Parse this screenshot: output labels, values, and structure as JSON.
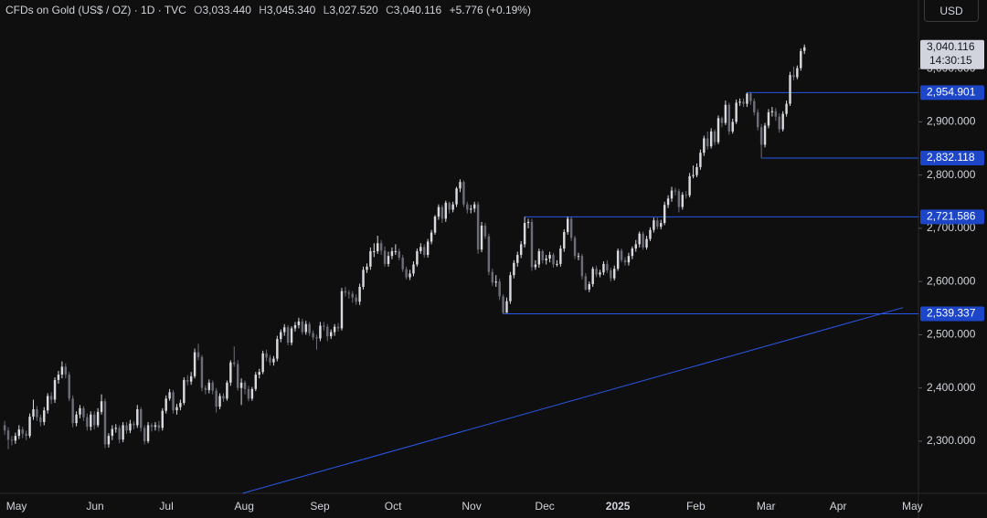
{
  "header": {
    "title": "CFDs on Gold (US$ / OZ) · 1D · TVC",
    "ohlc": [
      {
        "key": "O",
        "value": "3,033.440"
      },
      {
        "key": "H",
        "value": "3,045.340"
      },
      {
        "key": "L",
        "value": "3,027.520"
      },
      {
        "key": "C",
        "value": "3,040.116"
      }
    ],
    "change": "+5.776 (+0.19%)",
    "currency": "USD"
  },
  "last_label": {
    "price": "3,040.116",
    "countdown": "14:30:15"
  },
  "chart_data": {
    "type": "candlestick",
    "up_color": "#d9dadf",
    "down_color": "#6b6e78",
    "line_color": "#2958e8",
    "label_color": "#1c45c8",
    "xlim": [
      -1.3,
      254.8
    ],
    "ylim": [
      2202,
      3129
    ],
    "xticks": [
      {
        "value": 3.3,
        "label": "May"
      },
      {
        "value": 25.2,
        "label": "Jun"
      },
      {
        "value": 45.1,
        "label": "Jul"
      },
      {
        "value": 66.8,
        "label": "Aug"
      },
      {
        "value": 87.9,
        "label": "Sep"
      },
      {
        "value": 108.3,
        "label": "Oct"
      },
      {
        "value": 130.2,
        "label": "Nov"
      },
      {
        "value": 150.6,
        "label": "Dec"
      },
      {
        "value": 171.0,
        "label": "2025"
      },
      {
        "value": 192.7,
        "label": "Feb"
      },
      {
        "value": 212.3,
        "label": "Mar"
      },
      {
        "value": 232.4,
        "label": "Apr"
      },
      {
        "value": 253.1,
        "label": "May"
      }
    ],
    "yticks": [
      {
        "value": 2300,
        "label": "2,300.000"
      },
      {
        "value": 2400,
        "label": "2,400.000"
      },
      {
        "value": 2500,
        "label": "2,500.000"
      },
      {
        "value": 2600,
        "label": "2,600.000"
      },
      {
        "value": 2700,
        "label": "2,700.000"
      },
      {
        "value": 2800,
        "label": "2,800.000"
      },
      {
        "value": 2900,
        "label": "2,900.000"
      },
      {
        "value": 3000,
        "label": "3,000.000"
      }
    ],
    "levels": [
      {
        "value": 2954.901,
        "label": "2,954.901",
        "start": 207
      },
      {
        "value": 2832.118,
        "label": "2,832.118",
        "start": 211
      },
      {
        "value": 2721.586,
        "label": "2,721.586",
        "start": 145
      },
      {
        "value": 2539.337,
        "label": "2,539.337",
        "start": 139
      }
    ],
    "trendline": {
      "x": [
        66.3,
        250.5
      ],
      "y": [
        2202,
        2551
      ]
    },
    "candles": [
      [
        2330,
        2338,
        2312,
        2320
      ],
      [
        2320,
        2326,
        2285,
        2303
      ],
      [
        2303,
        2310,
        2292,
        2301
      ],
      [
        2301,
        2316,
        2295,
        2310
      ],
      [
        2310,
        2330,
        2304,
        2322
      ],
      [
        2322,
        2327,
        2306,
        2314
      ],
      [
        2314,
        2320,
        2302,
        2310
      ],
      [
        2310,
        2352,
        2306,
        2346
      ],
      [
        2346,
        2378,
        2340,
        2360
      ],
      [
        2360,
        2366,
        2338,
        2345
      ],
      [
        2345,
        2350,
        2328,
        2336
      ],
      [
        2336,
        2364,
        2330,
        2358
      ],
      [
        2358,
        2390,
        2352,
        2385
      ],
      [
        2385,
        2392,
        2370,
        2378
      ],
      [
        2378,
        2420,
        2372,
        2415
      ],
      [
        2415,
        2432,
        2408,
        2425
      ],
      [
        2425,
        2450,
        2418,
        2440
      ],
      [
        2440,
        2446,
        2418,
        2425
      ],
      [
        2425,
        2430,
        2375,
        2380
      ],
      [
        2380,
        2386,
        2326,
        2334
      ],
      [
        2334,
        2356,
        2328,
        2350
      ],
      [
        2350,
        2368,
        2343,
        2362
      ],
      [
        2362,
        2366,
        2338,
        2345
      ],
      [
        2345,
        2352,
        2320,
        2327
      ],
      [
        2327,
        2356,
        2320,
        2350
      ],
      [
        2350,
        2356,
        2322,
        2330
      ],
      [
        2330,
        2362,
        2326,
        2355
      ],
      [
        2355,
        2388,
        2350,
        2375
      ],
      [
        2375,
        2380,
        2287,
        2294
      ],
      [
        2294,
        2315,
        2288,
        2310
      ],
      [
        2310,
        2330,
        2302,
        2323
      ],
      [
        2323,
        2332,
        2316,
        2325
      ],
      [
        2325,
        2330,
        2296,
        2303
      ],
      [
        2303,
        2336,
        2298,
        2330
      ],
      [
        2330,
        2336,
        2314,
        2320
      ],
      [
        2320,
        2340,
        2315,
        2333
      ],
      [
        2333,
        2338,
        2322,
        2330
      ],
      [
        2330,
        2368,
        2325,
        2360
      ],
      [
        2360,
        2364,
        2318,
        2325
      ],
      [
        2325,
        2330,
        2294,
        2300
      ],
      [
        2300,
        2336,
        2296,
        2330
      ],
      [
        2330,
        2334,
        2318,
        2327
      ],
      [
        2327,
        2336,
        2320,
        2330
      ],
      [
        2330,
        2338,
        2318,
        2325
      ],
      [
        2325,
        2362,
        2320,
        2357
      ],
      [
        2357,
        2386,
        2352,
        2380
      ],
      [
        2380,
        2398,
        2376,
        2392
      ],
      [
        2392,
        2396,
        2352,
        2358
      ],
      [
        2358,
        2370,
        2350,
        2364
      ],
      [
        2364,
        2378,
        2358,
        2372
      ],
      [
        2372,
        2420,
        2368,
        2415
      ],
      [
        2415,
        2424,
        2405,
        2412
      ],
      [
        2412,
        2430,
        2406,
        2422
      ],
      [
        2422,
        2474,
        2418,
        2467
      ],
      [
        2467,
        2483,
        2452,
        2458
      ],
      [
        2458,
        2462,
        2394,
        2400
      ],
      [
        2400,
        2405,
        2388,
        2396
      ],
      [
        2396,
        2416,
        2390,
        2410
      ],
      [
        2410,
        2414,
        2388,
        2395
      ],
      [
        2395,
        2400,
        2354,
        2365
      ],
      [
        2365,
        2390,
        2360,
        2385
      ],
      [
        2385,
        2390,
        2374,
        2380
      ],
      [
        2380,
        2414,
        2376,
        2410
      ],
      [
        2410,
        2452,
        2404,
        2448
      ],
      [
        2448,
        2478,
        2440,
        2445
      ],
      [
        2445,
        2452,
        2395,
        2400
      ],
      [
        2400,
        2418,
        2368,
        2410
      ],
      [
        2410,
        2414,
        2388,
        2398
      ],
      [
        2398,
        2404,
        2375,
        2380
      ],
      [
        2380,
        2402,
        2376,
        2398
      ],
      [
        2398,
        2430,
        2394,
        2425
      ],
      [
        2425,
        2436,
        2418,
        2430
      ],
      [
        2430,
        2470,
        2426,
        2465
      ],
      [
        2465,
        2472,
        2450,
        2457
      ],
      [
        2457,
        2462,
        2442,
        2448
      ],
      [
        2448,
        2460,
        2442,
        2455
      ],
      [
        2455,
        2498,
        2450,
        2492
      ],
      [
        2492,
        2510,
        2486,
        2505
      ],
      [
        2505,
        2520,
        2498,
        2514
      ],
      [
        2514,
        2518,
        2480,
        2485
      ],
      [
        2485,
        2516,
        2480,
        2512
      ],
      [
        2512,
        2524,
        2506,
        2518
      ],
      [
        2518,
        2532,
        2512,
        2525
      ],
      [
        2525,
        2530,
        2500,
        2505
      ],
      [
        2505,
        2526,
        2500,
        2520
      ],
      [
        2520,
        2524,
        2498,
        2503
      ],
      [
        2503,
        2508,
        2490,
        2495
      ],
      [
        2495,
        2500,
        2472,
        2493
      ],
      [
        2493,
        2524,
        2488,
        2517
      ],
      [
        2517,
        2524,
        2508,
        2515
      ],
      [
        2515,
        2520,
        2488,
        2497
      ],
      [
        2497,
        2510,
        2492,
        2505
      ],
      [
        2505,
        2520,
        2498,
        2515
      ],
      [
        2515,
        2522,
        2506,
        2512
      ],
      [
        2512,
        2588,
        2508,
        2582
      ],
      [
        2582,
        2590,
        2572,
        2579
      ],
      [
        2579,
        2584,
        2568,
        2577
      ],
      [
        2577,
        2582,
        2560,
        2570
      ],
      [
        2570,
        2576,
        2556,
        2562
      ],
      [
        2562,
        2596,
        2556,
        2590
      ],
      [
        2590,
        2628,
        2585,
        2622
      ],
      [
        2622,
        2634,
        2616,
        2628
      ],
      [
        2628,
        2664,
        2622,
        2657
      ],
      [
        2657,
        2672,
        2646,
        2657
      ],
      [
        2657,
        2686,
        2652,
        2672
      ],
      [
        2672,
        2678,
        2650,
        2658
      ],
      [
        2658,
        2666,
        2628,
        2633
      ],
      [
        2633,
        2656,
        2628,
        2648
      ],
      [
        2648,
        2664,
        2642,
        2657
      ],
      [
        2657,
        2670,
        2650,
        2657
      ],
      [
        2657,
        2662,
        2640,
        2645
      ],
      [
        2645,
        2650,
        2618,
        2623
      ],
      [
        2623,
        2628,
        2604,
        2608
      ],
      [
        2608,
        2622,
        2603,
        2615
      ],
      [
        2615,
        2638,
        2610,
        2632
      ],
      [
        2632,
        2662,
        2628,
        2657
      ],
      [
        2657,
        2672,
        2652,
        2665
      ],
      [
        2665,
        2670,
        2645,
        2650
      ],
      [
        2650,
        2680,
        2645,
        2675
      ],
      [
        2675,
        2697,
        2670,
        2692
      ],
      [
        2692,
        2725,
        2688,
        2722
      ],
      [
        2722,
        2745,
        2716,
        2740
      ],
      [
        2740,
        2744,
        2710,
        2718
      ],
      [
        2718,
        2752,
        2712,
        2748
      ],
      [
        2748,
        2750,
        2728,
        2735
      ],
      [
        2735,
        2750,
        2730,
        2745
      ],
      [
        2745,
        2778,
        2740,
        2775
      ],
      [
        2775,
        2792,
        2768,
        2787
      ],
      [
        2787,
        2790,
        2740,
        2745
      ],
      [
        2745,
        2750,
        2728,
        2735
      ],
      [
        2735,
        2744,
        2728,
        2737
      ],
      [
        2737,
        2750,
        2730,
        2745
      ],
      [
        2745,
        2750,
        2652,
        2660
      ],
      [
        2660,
        2712,
        2655,
        2705
      ],
      [
        2705,
        2710,
        2680,
        2685
      ],
      [
        2685,
        2690,
        2612,
        2618
      ],
      [
        2618,
        2624,
        2592,
        2598
      ],
      [
        2598,
        2612,
        2590,
        2600
      ],
      [
        2600,
        2605,
        2565,
        2572
      ],
      [
        2572,
        2576,
        2539.337,
        2541
      ],
      [
        2541,
        2570,
        2541,
        2563
      ],
      [
        2563,
        2618,
        2558,
        2612
      ],
      [
        2612,
        2640,
        2606,
        2635
      ],
      [
        2635,
        2656,
        2628,
        2650
      ],
      [
        2650,
        2676,
        2644,
        2670
      ],
      [
        2670,
        2721.586,
        2664,
        2710
      ],
      [
        2710,
        2718,
        2700,
        2712
      ],
      [
        2712,
        2718,
        2620,
        2627
      ],
      [
        2627,
        2640,
        2622,
        2632
      ],
      [
        2632,
        2662,
        2626,
        2657
      ],
      [
        2657,
        2660,
        2634,
        2640
      ],
      [
        2640,
        2650,
        2632,
        2643
      ],
      [
        2643,
        2656,
        2636,
        2650
      ],
      [
        2650,
        2654,
        2626,
        2632
      ],
      [
        2632,
        2640,
        2628,
        2633
      ],
      [
        2633,
        2668,
        2628,
        2662
      ],
      [
        2662,
        2698,
        2656,
        2693
      ],
      [
        2693,
        2722,
        2688,
        2718
      ],
      [
        2718,
        2722,
        2676,
        2682
      ],
      [
        2682,
        2686,
        2642,
        2648
      ],
      [
        2648,
        2654,
        2640,
        2648
      ],
      [
        2648,
        2652,
        2604,
        2610
      ],
      [
        2610,
        2616,
        2583,
        2585
      ],
      [
        2585,
        2600,
        2580,
        2595
      ],
      [
        2595,
        2628,
        2590,
        2624
      ],
      [
        2624,
        2630,
        2608,
        2613
      ],
      [
        2613,
        2622,
        2608,
        2617
      ],
      [
        2617,
        2638,
        2612,
        2633
      ],
      [
        2633,
        2640,
        2616,
        2621
      ],
      [
        2621,
        2626,
        2600,
        2606
      ],
      [
        2606,
        2630,
        2602,
        2624
      ],
      [
        2624,
        2662,
        2620,
        2658
      ],
      [
        2658,
        2662,
        2636,
        2640
      ],
      [
        2640,
        2646,
        2630,
        2636
      ],
      [
        2636,
        2654,
        2630,
        2648
      ],
      [
        2648,
        2666,
        2642,
        2662
      ],
      [
        2662,
        2678,
        2656,
        2670
      ],
      [
        2670,
        2694,
        2664,
        2690
      ],
      [
        2690,
        2694,
        2660,
        2664
      ],
      [
        2664,
        2686,
        2660,
        2680
      ],
      [
        2680,
        2702,
        2676,
        2697
      ],
      [
        2697,
        2720,
        2692,
        2715
      ],
      [
        2715,
        2720,
        2698,
        2703
      ],
      [
        2703,
        2716,
        2698,
        2710
      ],
      [
        2710,
        2750,
        2706,
        2744
      ],
      [
        2744,
        2762,
        2738,
        2756
      ],
      [
        2756,
        2778,
        2750,
        2771
      ],
      [
        2771,
        2776,
        2762,
        2770
      ],
      [
        2770,
        2774,
        2730,
        2740
      ],
      [
        2740,
        2768,
        2735,
        2763
      ],
      [
        2763,
        2770,
        2756,
        2762
      ],
      [
        2762,
        2804,
        2758,
        2798
      ],
      [
        2798,
        2818,
        2794,
        2800
      ],
      [
        2800,
        2822,
        2796,
        2815
      ],
      [
        2815,
        2848,
        2810,
        2842
      ],
      [
        2842,
        2874,
        2836,
        2869
      ],
      [
        2869,
        2882,
        2848,
        2854
      ],
      [
        2854,
        2888,
        2850,
        2882
      ],
      [
        2882,
        2886,
        2856,
        2862
      ],
      [
        2862,
        2912,
        2858,
        2907
      ],
      [
        2907,
        2910,
        2890,
        2898
      ],
      [
        2898,
        2940,
        2894,
        2932
      ],
      [
        2932,
        2936,
        2876,
        2882
      ],
      [
        2882,
        2906,
        2878,
        2900
      ],
      [
        2900,
        2942,
        2896,
        2936
      ],
      [
        2936,
        2944,
        2930,
        2938
      ],
      [
        2938,
        2944,
        2928,
        2934
      ],
      [
        2934,
        2954.901,
        2928,
        2953
      ],
      [
        2953,
        2956,
        2932,
        2939
      ],
      [
        2939,
        2944,
        2912,
        2918
      ],
      [
        2918,
        2924,
        2884,
        2890
      ],
      [
        2890,
        2896,
        2832.118,
        2857
      ],
      [
        2857,
        2898,
        2852,
        2893
      ],
      [
        2893,
        2924,
        2888,
        2918
      ],
      [
        2918,
        2928,
        2910,
        2920
      ],
      [
        2920,
        2926,
        2902,
        2910
      ],
      [
        2910,
        2916,
        2880,
        2886
      ],
      [
        2886,
        2920,
        2882,
        2915
      ],
      [
        2915,
        2940,
        2910,
        2934
      ],
      [
        2934,
        2994,
        2930,
        2988
      ],
      [
        2988,
        3004,
        2978,
        2984
      ],
      [
        2984,
        3006,
        2980,
        3001
      ],
      [
        3001,
        3038,
        2996,
        3033
      ],
      [
        3033.44,
        3045.34,
        3027.52,
        3040.116
      ]
    ]
  }
}
